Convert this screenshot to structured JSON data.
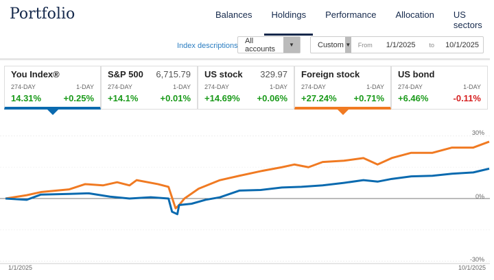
{
  "header": {
    "title": "Portfolio",
    "nav": [
      "Balances",
      "Holdings",
      "Performance",
      "Allocation",
      "US sectors"
    ],
    "active": "Holdings"
  },
  "controls": {
    "index_link": "Index descriptions",
    "account": "All accounts",
    "range": "Custom",
    "from_label": "From",
    "from": "1/1/2025",
    "to_label": "to",
    "to": "10/1/2025"
  },
  "cards": [
    {
      "name": "You Index®",
      "price": "",
      "l1": "274-DAY",
      "l2": "1-DAY",
      "v1": "14.31%",
      "v2": "+0.25%",
      "c2": "g"
    },
    {
      "name": "S&P 500",
      "price": "6,715.79",
      "l1": "274-DAY",
      "l2": "1-DAY",
      "v1": "+14.1%",
      "v2": "+0.01%",
      "c2": "g"
    },
    {
      "name": "US stock",
      "price": "329.97",
      "l1": "274-DAY",
      "l2": "1-DAY",
      "v1": "+14.69%",
      "v2": "+0.06%",
      "c2": "g"
    },
    {
      "name": "Foreign stock",
      "price": "",
      "l1": "274-DAY",
      "l2": "1-DAY",
      "v1": "+27.24%",
      "v2": "+0.71%",
      "c2": "g"
    },
    {
      "name": "US bond",
      "price": "",
      "l1": "274-DAY",
      "l2": "1-DAY",
      "v1": "+6.46%",
      "v2": "-0.11%",
      "c2": "rd"
    }
  ],
  "chart_data": {
    "type": "line",
    "x_start": "1/1/2025",
    "x_end": "10/1/2025",
    "y_ticks": [
      "30%",
      "0%",
      "-30%"
    ],
    "ylim": [
      -30,
      30
    ],
    "xlim": [
      0,
      273
    ],
    "series": [
      {
        "name": "Foreign stock",
        "color": "#f07a22",
        "points": [
          [
            0,
            0
          ],
          [
            12,
            1.6
          ],
          [
            20,
            3.1
          ],
          [
            36,
            4.4
          ],
          [
            45,
            6.9
          ],
          [
            55,
            6.3
          ],
          [
            63,
            7.8
          ],
          [
            70,
            6.3
          ],
          [
            74,
            8.8
          ],
          [
            86,
            6.9
          ],
          [
            92,
            5.6
          ],
          [
            96,
            -4.7
          ],
          [
            98,
            -3.1
          ],
          [
            101,
            0
          ],
          [
            109,
            4.7
          ],
          [
            121,
            8.8
          ],
          [
            132,
            10.9
          ],
          [
            144,
            13.1
          ],
          [
            156,
            15
          ],
          [
            163,
            16.3
          ],
          [
            171,
            15
          ],
          [
            179,
            17.5
          ],
          [
            191,
            18.1
          ],
          [
            202,
            19.4
          ],
          [
            210,
            16.3
          ],
          [
            218,
            19.4
          ],
          [
            229,
            21.9
          ],
          [
            241,
            21.9
          ],
          [
            252,
            24.4
          ],
          [
            264,
            24.4
          ],
          [
            273,
            27.24
          ]
        ]
      },
      {
        "name": "You Index®",
        "color": "#0a6aaf",
        "points": [
          [
            0,
            0
          ],
          [
            12,
            -0.6
          ],
          [
            20,
            1.9
          ],
          [
            36,
            2.2
          ],
          [
            47,
            2.5
          ],
          [
            59,
            0.9
          ],
          [
            70,
            0
          ],
          [
            82,
            0.6
          ],
          [
            92,
            0
          ],
          [
            94,
            -6.3
          ],
          [
            97,
            -7.5
          ],
          [
            98,
            -3.1
          ],
          [
            105,
            -2.5
          ],
          [
            113,
            -0.6
          ],
          [
            121,
            0.6
          ],
          [
            132,
            3.8
          ],
          [
            144,
            4.1
          ],
          [
            156,
            5.3
          ],
          [
            167,
            5.6
          ],
          [
            179,
            6.3
          ],
          [
            191,
            7.5
          ],
          [
            202,
            8.8
          ],
          [
            210,
            8.1
          ],
          [
            218,
            9.4
          ],
          [
            229,
            10.6
          ],
          [
            241,
            10.9
          ],
          [
            252,
            11.9
          ],
          [
            264,
            12.5
          ],
          [
            273,
            14.31
          ]
        ]
      }
    ]
  }
}
